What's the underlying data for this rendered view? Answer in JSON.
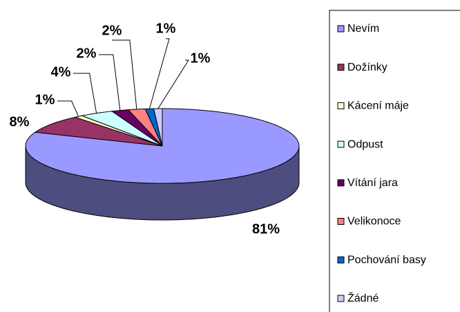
{
  "chart_data": {
    "type": "pie3d",
    "categories": [
      "Nevím",
      "Dožínky",
      "Kácení máje",
      "Odpust",
      "Vítání jara",
      "Velikonoce",
      "Pochování basy",
      "Žádné"
    ],
    "values": [
      81,
      8,
      1,
      4,
      2,
      2,
      1,
      1
    ],
    "value_labels": [
      "81%",
      "8%",
      "1%",
      "4%",
      "2%",
      "2%",
      "1%",
      "1%"
    ],
    "colors": [
      "#9999ff",
      "#993366",
      "#ffffcc",
      "#ccffff",
      "#660066",
      "#ff8080",
      "#0066cc",
      "#ccccff"
    ]
  }
}
